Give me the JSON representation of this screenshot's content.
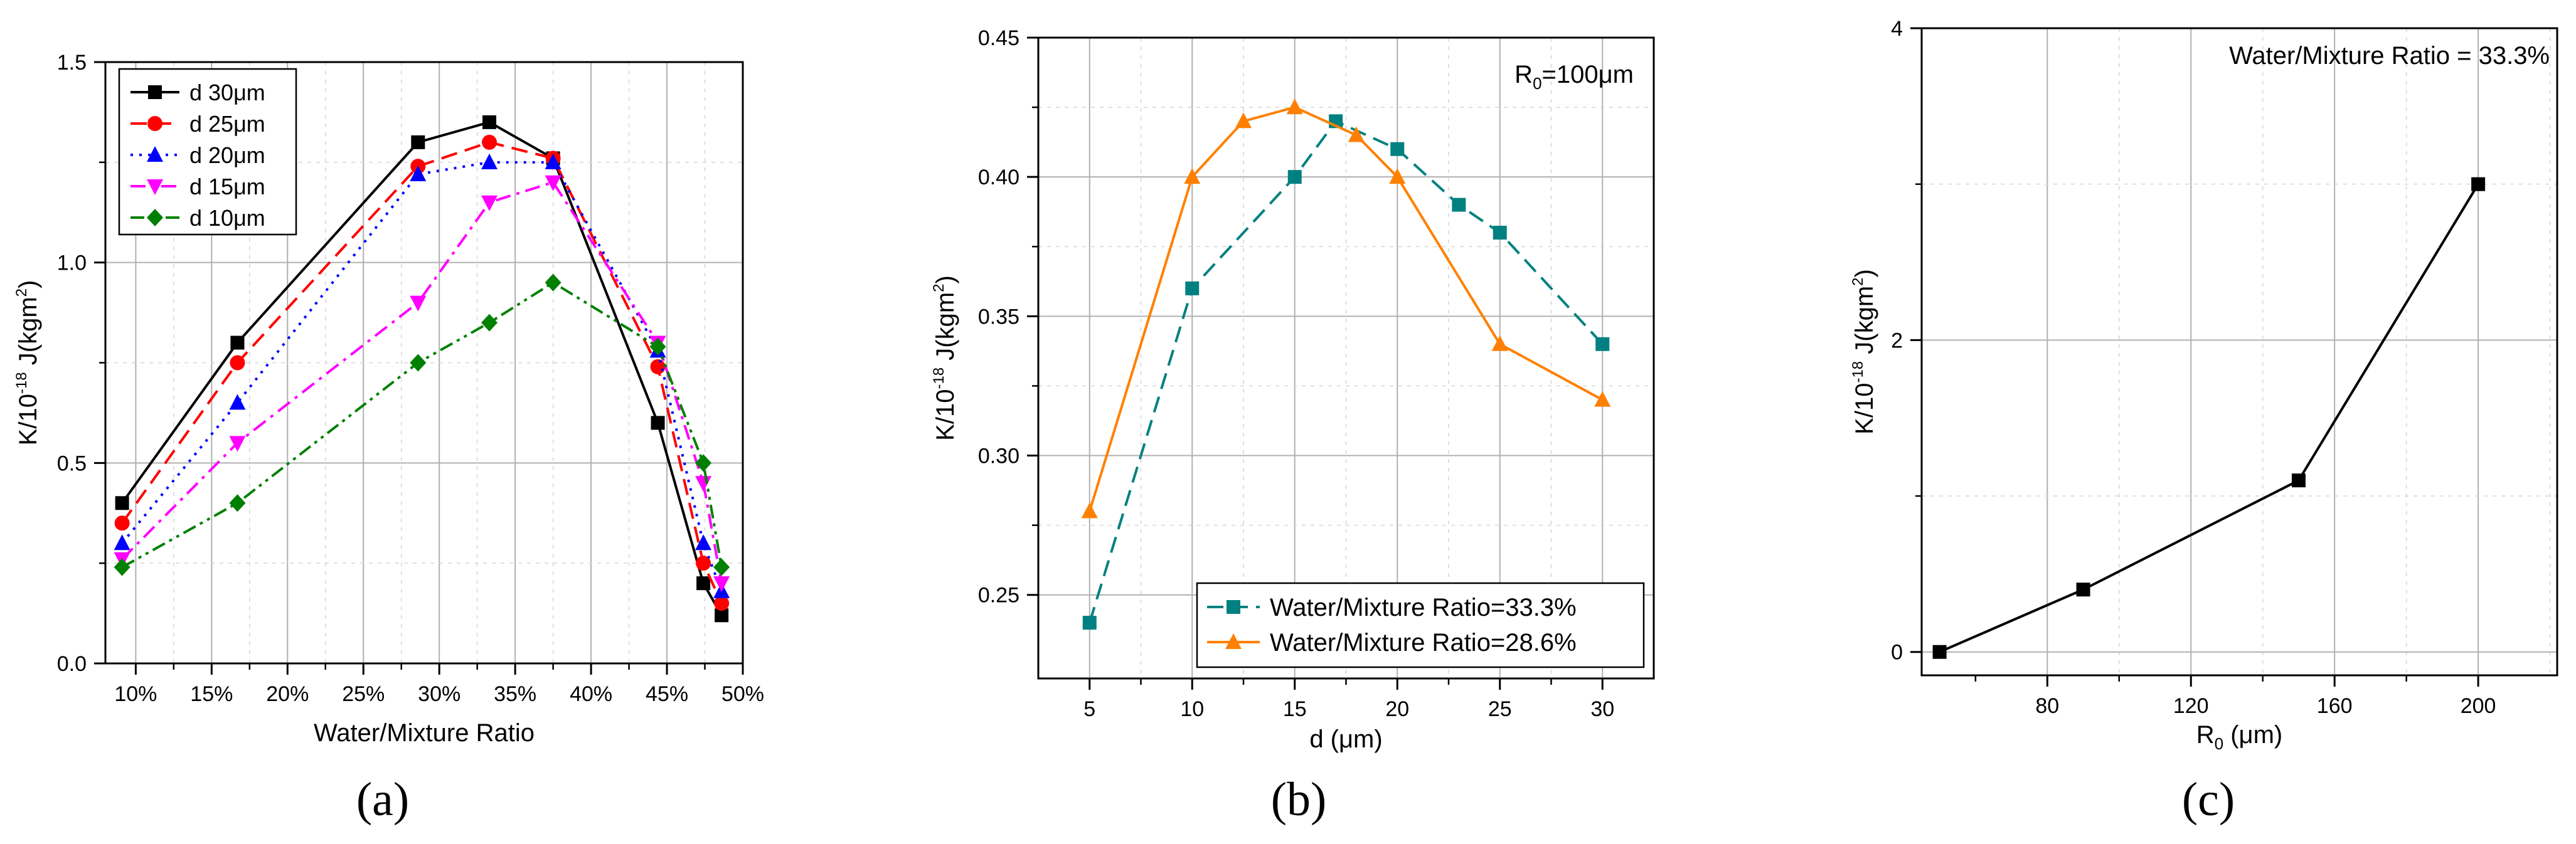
{
  "chart_data": [
    {
      "type": "line",
      "panel_label": "(a)",
      "xlabel": "Water/Mixture Ratio",
      "ylabel_main": "K/10",
      "ylabel_exp": "-18",
      "ylabel_unit": " J(kgm",
      "ylabel_unit_exp": "2",
      "ylabel_close": ")",
      "xlim": [
        8,
        50
      ],
      "ylim": [
        0,
        1.5
      ],
      "xticks": [
        10,
        15,
        20,
        25,
        30,
        35,
        40,
        45,
        50
      ],
      "xtick_labels": [
        "10%",
        "15%",
        "20%",
        "25%",
        "30%",
        "35%",
        "40%",
        "45%",
        "50%"
      ],
      "yticks": [
        0,
        0.5,
        1.0,
        1.5
      ],
      "ytick_labels": [
        "0.0",
        "0.5",
        "1.0",
        "1.5"
      ],
      "grid": true,
      "legend_position": "top-left",
      "series": [
        {
          "name": "d 30μm",
          "color": "#000000",
          "marker": "square",
          "dash": "solid",
          "x": [
            9.1,
            16.7,
            28.6,
            33.3,
            37.5,
            44.4,
            47.4,
            48.6
          ],
          "y": [
            0.4,
            0.8,
            1.3,
            1.35,
            1.26,
            0.6,
            0.2,
            0.12
          ]
        },
        {
          "name": "d 25μm",
          "color": "#ff0000",
          "marker": "circle",
          "dash": "dash",
          "x": [
            9.1,
            16.7,
            28.6,
            33.3,
            37.5,
            44.4,
            47.4,
            48.6
          ],
          "y": [
            0.35,
            0.75,
            1.24,
            1.3,
            1.26,
            0.74,
            0.25,
            0.15
          ]
        },
        {
          "name": "d 20μm",
          "color": "#0000ff",
          "marker": "triangle-up",
          "dash": "dot",
          "x": [
            9.1,
            16.7,
            28.6,
            33.3,
            37.5,
            44.4,
            47.4,
            48.6
          ],
          "y": [
            0.3,
            0.65,
            1.22,
            1.25,
            1.25,
            0.78,
            0.3,
            0.18
          ]
        },
        {
          "name": "d 15μm",
          "color": "#ff00ff",
          "marker": "triangle-down",
          "dash": "dashdot",
          "x": [
            9.1,
            16.7,
            28.6,
            33.3,
            37.5,
            44.4,
            47.4,
            48.6
          ],
          "y": [
            0.26,
            0.55,
            0.9,
            1.15,
            1.2,
            0.8,
            0.45,
            0.2
          ]
        },
        {
          "name": "d 10μm",
          "color": "#008000",
          "marker": "diamond",
          "dash": "dashdotdot",
          "x": [
            9.1,
            16.7,
            28.6,
            33.3,
            37.5,
            44.4,
            47.4,
            48.6
          ],
          "y": [
            0.24,
            0.4,
            0.75,
            0.85,
            0.95,
            0.79,
            0.5,
            0.24
          ]
        }
      ]
    },
    {
      "type": "line",
      "panel_label": "(b)",
      "xlabel": "d (μm)",
      "ylabel_main": "K/10",
      "ylabel_exp": "-18",
      "ylabel_unit": " J(kgm",
      "ylabel_unit_exp": "2",
      "ylabel_close": ")",
      "xlim": [
        2.5,
        32.5
      ],
      "ylim": [
        0.22,
        0.45
      ],
      "xticks": [
        5,
        10,
        15,
        20,
        25,
        30
      ],
      "xtick_labels": [
        "5",
        "10",
        "15",
        "20",
        "25",
        "30"
      ],
      "yticks": [
        0.25,
        0.3,
        0.35,
        0.4,
        0.45
      ],
      "ytick_labels": [
        "0.25",
        "0.30",
        "0.35",
        "0.40",
        "0.45"
      ],
      "grid": true,
      "legend_position": "bottom-right",
      "annotation_main": "R",
      "annotation_sub": "0",
      "annotation_rest": "=100μm",
      "series": [
        {
          "name": "Water/Mixture Ratio=33.3%",
          "color": "#008080",
          "marker": "square",
          "dash": "dash",
          "x": [
            5,
            10,
            15,
            17,
            20,
            23,
            25,
            30
          ],
          "y": [
            0.24,
            0.36,
            0.4,
            0.42,
            0.41,
            0.39,
            0.38,
            0.34
          ]
        },
        {
          "name": "Water/Mixture Ratio=28.6%",
          "color": "#ff8000",
          "marker": "triangle-up",
          "dash": "solid",
          "x": [
            5,
            10,
            12.5,
            15,
            18,
            20,
            25,
            30
          ],
          "y": [
            0.28,
            0.4,
            0.42,
            0.425,
            0.415,
            0.4,
            0.34,
            0.32
          ]
        }
      ]
    },
    {
      "type": "line",
      "panel_label": "(c)",
      "xlabel_main": "R",
      "xlabel_sub": "0",
      "xlabel_rest": " (μm)",
      "ylabel_main": "K/10",
      "ylabel_exp": "-18",
      "ylabel_unit": " J(kgm",
      "ylabel_unit_exp": "2",
      "ylabel_close": ")",
      "xlim": [
        45,
        222
      ],
      "ylim": [
        -0.15,
        4
      ],
      "xticks": [
        80,
        120,
        160,
        200
      ],
      "xtick_labels": [
        "80",
        "120",
        "160",
        "200"
      ],
      "yticks": [
        0,
        2,
        4
      ],
      "ytick_labels": [
        "0",
        "2",
        "4"
      ],
      "grid": true,
      "annotation": "Water/Mixture Ratio = 33.3%",
      "series": [
        {
          "name": "R0",
          "color": "#000000",
          "marker": "square",
          "dash": "solid",
          "x": [
            50,
            90,
            150,
            200
          ],
          "y": [
            0.0,
            0.4,
            1.1,
            3.0
          ]
        }
      ]
    }
  ]
}
